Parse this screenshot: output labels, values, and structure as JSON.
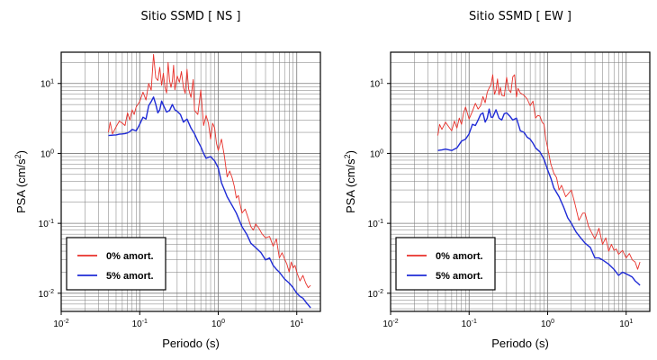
{
  "chart_data": [
    {
      "type": "line",
      "title": "Sitio SSMD [ NS ]",
      "xlabel": "Periodo (s)",
      "ylabel": "PSA (cm/s",
      "ylabel_sup": "2",
      "ylabel_end": ")",
      "xscale": "log",
      "yscale": "log",
      "xlim": [
        0.01,
        20
      ],
      "ylim": [
        0.0055,
        28
      ],
      "grid": true,
      "legend_position": "bottom-left",
      "x_tick_labels": [
        {
          "base": "10",
          "exp": "-2"
        },
        {
          "base": "10",
          "exp": "-1"
        },
        {
          "base": "10",
          "exp": "0"
        },
        {
          "base": "10",
          "exp": "1"
        }
      ],
      "y_tick_labels": [
        {
          "base": "10",
          "exp": "-2"
        },
        {
          "base": "10",
          "exp": "-1"
        },
        {
          "base": "10",
          "exp": "0"
        },
        {
          "base": "10",
          "exp": "1"
        }
      ],
      "series": [
        {
          "name": "0% amort.",
          "color": "#e8302a",
          "x": [
            0.04,
            0.042,
            0.045,
            0.05,
            0.055,
            0.06,
            0.065,
            0.07,
            0.075,
            0.08,
            0.085,
            0.09,
            0.1,
            0.11,
            0.12,
            0.13,
            0.14,
            0.15,
            0.16,
            0.17,
            0.18,
            0.19,
            0.2,
            0.21,
            0.22,
            0.23,
            0.24,
            0.25,
            0.26,
            0.27,
            0.28,
            0.3,
            0.32,
            0.34,
            0.36,
            0.38,
            0.4,
            0.42,
            0.45,
            0.48,
            0.5,
            0.55,
            0.6,
            0.65,
            0.7,
            0.75,
            0.8,
            0.85,
            0.9,
            0.95,
            1.0,
            1.1,
            1.2,
            1.3,
            1.4,
            1.5,
            1.6,
            1.7,
            1.8,
            2.0,
            2.2,
            2.4,
            2.6,
            2.8,
            3.0,
            3.3,
            3.6,
            4.0,
            4.5,
            5.0,
            5.5,
            6.0,
            6.5,
            7.0,
            7.5,
            8.0,
            8.5,
            9.0,
            9.5,
            10.0,
            11.0,
            12.0,
            13.0,
            14.0,
            15.0
          ],
          "y": [
            2.0,
            2.8,
            1.9,
            2.4,
            2.9,
            2.7,
            2.5,
            3.8,
            3.0,
            4.2,
            3.6,
            4.6,
            5.5,
            7.5,
            5.8,
            10,
            8,
            26,
            12,
            11,
            17,
            9.4,
            14,
            8.7,
            7.3,
            20,
            11,
            8.8,
            10.8,
            18.2,
            8.1,
            12.8,
            10.4,
            14.8,
            8.7,
            7.2,
            16,
            8.3,
            6.3,
            11.4,
            4.1,
            3.6,
            8.1,
            2.5,
            3.5,
            2.7,
            1.6,
            2.7,
            2.3,
            1.4,
            1.1,
            1.6,
            0.9,
            0.46,
            0.56,
            0.45,
            0.34,
            0.23,
            0.25,
            0.14,
            0.16,
            0.12,
            0.09,
            0.08,
            0.098,
            0.085,
            0.071,
            0.062,
            0.065,
            0.047,
            0.06,
            0.032,
            0.038,
            0.031,
            0.026,
            0.02,
            0.028,
            0.023,
            0.025,
            0.02,
            0.015,
            0.018,
            0.014,
            0.012,
            0.013
          ]
        },
        {
          "name": "5% amort.",
          "color": "#1f2bd6",
          "x": [
            0.04,
            0.045,
            0.05,
            0.055,
            0.06,
            0.065,
            0.07,
            0.075,
            0.08,
            0.09,
            0.1,
            0.11,
            0.12,
            0.13,
            0.14,
            0.15,
            0.16,
            0.17,
            0.18,
            0.19,
            0.2,
            0.22,
            0.24,
            0.26,
            0.28,
            0.3,
            0.33,
            0.36,
            0.4,
            0.45,
            0.5,
            0.55,
            0.6,
            0.65,
            0.7,
            0.8,
            0.9,
            1.0,
            1.1,
            1.2,
            1.3,
            1.5,
            1.7,
            2.0,
            2.3,
            2.6,
            3.0,
            3.5,
            4.0,
            4.5,
            5.0,
            5.5,
            6.0,
            7.0,
            8.0,
            9.0,
            10.0,
            11.0,
            12.0,
            13.0,
            14.0,
            15.0
          ],
          "y": [
            1.8,
            1.82,
            1.84,
            1.88,
            1.9,
            1.92,
            1.96,
            2.05,
            2.2,
            2.1,
            2.6,
            3.3,
            3.1,
            4.8,
            5.5,
            6.4,
            5.0,
            3.8,
            4.2,
            5.6,
            4.9,
            3.9,
            4.1,
            5.0,
            4.2,
            4.0,
            3.6,
            2.8,
            3.1,
            2.3,
            1.9,
            1.5,
            1.25,
            1.0,
            0.85,
            0.9,
            0.78,
            0.62,
            0.38,
            0.3,
            0.24,
            0.18,
            0.14,
            0.09,
            0.07,
            0.052,
            0.045,
            0.038,
            0.03,
            0.032,
            0.025,
            0.022,
            0.02,
            0.016,
            0.014,
            0.012,
            0.01,
            0.009,
            0.0085,
            0.0075,
            0.0068,
            0.0062
          ]
        }
      ]
    },
    {
      "type": "line",
      "title": "Sitio SSMD [ EW ]",
      "xlabel": "Periodo (s)",
      "ylabel": "PSA (cm/s",
      "ylabel_sup": "2",
      "ylabel_end": ")",
      "xscale": "log",
      "yscale": "log",
      "xlim": [
        0.01,
        20
      ],
      "ylim": [
        0.0055,
        28
      ],
      "grid": true,
      "legend_position": "bottom-left",
      "x_tick_labels": [
        {
          "base": "10",
          "exp": "-2"
        },
        {
          "base": "10",
          "exp": "-1"
        },
        {
          "base": "10",
          "exp": "0"
        },
        {
          "base": "10",
          "exp": "1"
        }
      ],
      "y_tick_labels": [
        {
          "base": "10",
          "exp": "-2"
        },
        {
          "base": "10",
          "exp": "-1"
        },
        {
          "base": "10",
          "exp": "0"
        },
        {
          "base": "10",
          "exp": "1"
        }
      ],
      "series": [
        {
          "name": "0% amort.",
          "color": "#e8302a",
          "x": [
            0.04,
            0.042,
            0.045,
            0.05,
            0.055,
            0.06,
            0.065,
            0.07,
            0.075,
            0.08,
            0.085,
            0.09,
            0.1,
            0.11,
            0.12,
            0.13,
            0.14,
            0.15,
            0.16,
            0.17,
            0.18,
            0.19,
            0.2,
            0.21,
            0.22,
            0.23,
            0.24,
            0.25,
            0.26,
            0.28,
            0.3,
            0.32,
            0.34,
            0.36,
            0.38,
            0.4,
            0.42,
            0.45,
            0.5,
            0.55,
            0.6,
            0.65,
            0.7,
            0.75,
            0.8,
            0.85,
            0.9,
            0.95,
            1.0,
            1.1,
            1.2,
            1.3,
            1.4,
            1.5,
            1.7,
            2.0,
            2.2,
            2.5,
            2.8,
            3.0,
            3.3,
            3.6,
            4.0,
            4.5,
            5.0,
            5.5,
            6.0,
            6.5,
            7.0,
            7.5,
            8.0,
            9.0,
            10.0,
            11.0,
            12.0,
            13.0,
            14.0,
            15.0
          ],
          "y": [
            1.8,
            2.6,
            2.2,
            2.8,
            2.4,
            2.1,
            2.9,
            2.3,
            3.2,
            2.6,
            3.8,
            4.6,
            3.1,
            4.0,
            5.2,
            4.3,
            4.8,
            6.5,
            5.3,
            7.5,
            8.6,
            9.6,
            13.3,
            7.0,
            8.0,
            11.6,
            6.9,
            8.8,
            6.8,
            6.6,
            12.2,
            8.1,
            7.4,
            12.5,
            13.3,
            6.4,
            8.5,
            7.3,
            6.8,
            6.0,
            4.8,
            5.6,
            3.2,
            3.5,
            3.4,
            2.8,
            2.6,
            1.6,
            1.2,
            0.7,
            0.52,
            0.45,
            0.3,
            0.35,
            0.24,
            0.3,
            0.2,
            0.11,
            0.14,
            0.14,
            0.092,
            0.075,
            0.06,
            0.085,
            0.05,
            0.062,
            0.04,
            0.05,
            0.041,
            0.043,
            0.036,
            0.041,
            0.032,
            0.037,
            0.03,
            0.028,
            0.022,
            0.028
          ]
        },
        {
          "name": "5% amort.",
          "color": "#1f2bd6",
          "x": [
            0.04,
            0.045,
            0.05,
            0.06,
            0.07,
            0.08,
            0.09,
            0.1,
            0.11,
            0.12,
            0.13,
            0.14,
            0.15,
            0.16,
            0.17,
            0.18,
            0.19,
            0.2,
            0.22,
            0.24,
            0.26,
            0.28,
            0.3,
            0.33,
            0.36,
            0.4,
            0.45,
            0.5,
            0.55,
            0.6,
            0.65,
            0.7,
            0.8,
            0.9,
            1.0,
            1.1,
            1.2,
            1.4,
            1.6,
            1.8,
            2.0,
            2.3,
            2.6,
            3.0,
            3.5,
            4.0,
            4.5,
            5.0,
            6.0,
            7.0,
            8.0,
            9.0,
            10.0,
            11.0,
            12.0,
            13.0,
            14.0,
            15.0
          ],
          "y": [
            1.1,
            1.12,
            1.15,
            1.1,
            1.2,
            1.5,
            1.6,
            1.9,
            2.6,
            2.5,
            3.0,
            3.6,
            3.8,
            2.8,
            3.2,
            4.3,
            3.3,
            3.3,
            4.2,
            3.2,
            3.0,
            3.7,
            3.8,
            3.4,
            3.0,
            3.2,
            2.1,
            2.0,
            1.7,
            1.6,
            1.4,
            1.2,
            1.05,
            0.82,
            0.58,
            0.44,
            0.32,
            0.24,
            0.17,
            0.12,
            0.1,
            0.075,
            0.063,
            0.052,
            0.045,
            0.032,
            0.032,
            0.03,
            0.026,
            0.022,
            0.018,
            0.02,
            0.019,
            0.018,
            0.017,
            0.015,
            0.014,
            0.013
          ]
        }
      ]
    }
  ]
}
